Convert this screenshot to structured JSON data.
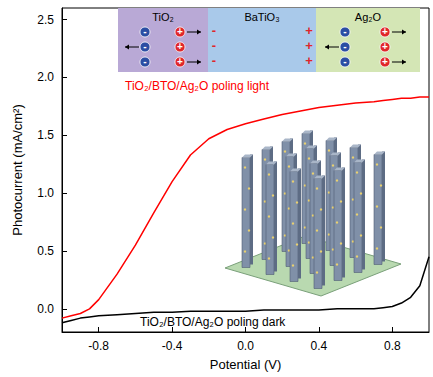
{
  "chart_data": {
    "type": "line",
    "xlabel": "Potential (V)",
    "ylabel": "Photocurrent (mA/cm²)",
    "x": [
      -1.0,
      -0.95,
      -0.9,
      -0.85,
      -0.8,
      -0.7,
      -0.6,
      -0.5,
      -0.4,
      -0.3,
      -0.2,
      -0.1,
      0.0,
      0.1,
      0.2,
      0.3,
      0.4,
      0.5,
      0.6,
      0.7,
      0.75,
      0.8,
      0.85,
      0.9,
      0.95,
      1.0
    ],
    "xlim": [
      -1.0,
      1.0
    ],
    "xticks": [
      -0.8,
      -0.4,
      {
        "value": 0,
        "label": "0.0"
      },
      0.4,
      0.8
    ],
    "ylim": [
      -0.2,
      2.6
    ],
    "yticks": [
      {
        "value": 0,
        "label": "0.0"
      },
      0.5,
      {
        "value": 1,
        "label": "1.0"
      },
      1.5,
      {
        "value": 2,
        "label": "2.0"
      },
      2.5
    ],
    "grid": false,
    "series": [
      {
        "name": "TiO₂/BTO/Ag₂O poling light",
        "color": "#ff0000",
        "values": [
          -0.08,
          -0.06,
          -0.04,
          0.0,
          0.08,
          0.3,
          0.55,
          0.83,
          1.1,
          1.33,
          1.47,
          1.55,
          1.6,
          1.64,
          1.68,
          1.71,
          1.74,
          1.76,
          1.78,
          1.79,
          1.8,
          1.81,
          1.82,
          1.82,
          1.83,
          1.83
        ]
      },
      {
        "name": "TiO₂/BTO/Ag₂O poling dark",
        "color": "#000000",
        "values": [
          -0.12,
          -0.1,
          -0.08,
          -0.07,
          -0.06,
          -0.05,
          -0.04,
          -0.03,
          -0.03,
          -0.02,
          -0.02,
          -0.02,
          -0.02,
          -0.01,
          -0.01,
          -0.01,
          -0.01,
          0.0,
          0.0,
          0.0,
          0.01,
          0.02,
          0.05,
          0.1,
          0.2,
          0.45
        ]
      }
    ],
    "inset": {
      "layers": [
        "TiO₂",
        "BaTiO₃",
        "Ag₂O"
      ],
      "charges": {
        "negative": "-",
        "positive": "+"
      }
    }
  }
}
